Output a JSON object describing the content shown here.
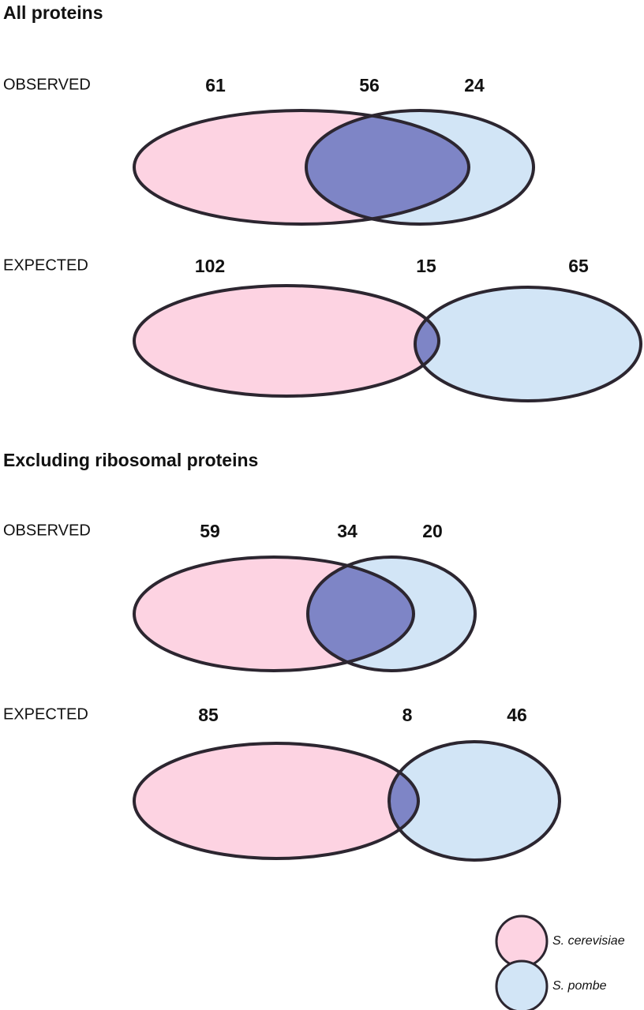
{
  "sections": [
    {
      "title": "All proteins",
      "panels": [
        {
          "label": "OBSERVED",
          "counts": [
            61,
            56,
            24
          ]
        },
        {
          "label": "EXPECTED",
          "counts": [
            102,
            15,
            65
          ]
        }
      ]
    },
    {
      "title": "Excluding ribosomal proteins",
      "panels": [
        {
          "label": "OBSERVED",
          "counts": [
            59,
            34,
            20
          ]
        },
        {
          "label": "EXPECTED",
          "counts": [
            85,
            8,
            46
          ]
        }
      ]
    }
  ],
  "legend": [
    {
      "name": "S. cerevisiae",
      "color": "#fdd3e2"
    },
    {
      "name": "S. pombe",
      "color": "#d2e5f6"
    }
  ]
}
